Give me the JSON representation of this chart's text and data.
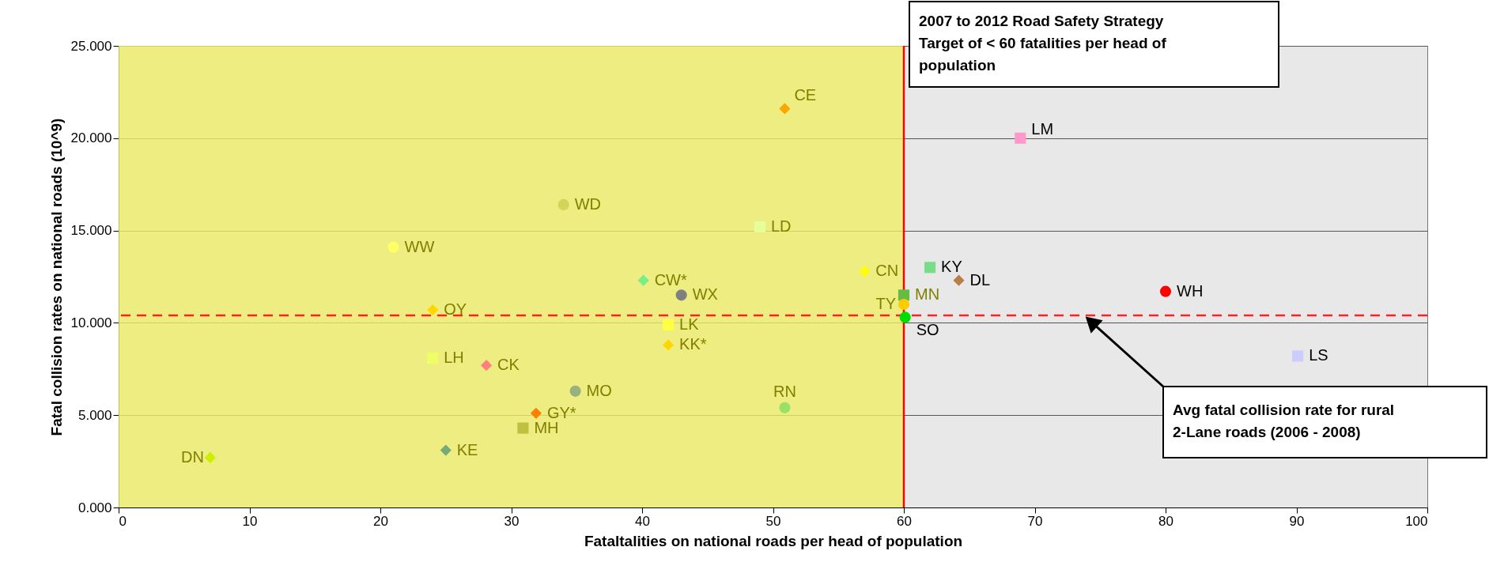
{
  "chart_data": {
    "type": "scatter",
    "xlabel": "Fataltalities on national roads per head of population",
    "ylabel": "Fatal collision rates on national roads (10^9)",
    "xlim": [
      0,
      100
    ],
    "xticks": [
      0,
      10,
      20,
      30,
      40,
      50,
      60,
      70,
      80,
      90,
      100
    ],
    "ylim": [
      0,
      25
    ],
    "yticks": [
      {
        "value": 0,
        "label": "0.000"
      },
      {
        "value": 5,
        "label": "5.000"
      },
      {
        "value": 10,
        "label": "10.000"
      },
      {
        "value": 15,
        "label": "15.000"
      },
      {
        "value": 20,
        "label": "20.000"
      },
      {
        "value": 25,
        "label": "25.000"
      }
    ],
    "grid": "y",
    "legend": false,
    "bands": [
      {
        "axis": "x",
        "from": 0,
        "to": 60,
        "color": "#eeee66"
      }
    ],
    "ref_lines": [
      {
        "axis": "x",
        "value": 60,
        "label": "2007 to 2012 Road Safety Strategy Target of < 60 fatalities per head of population",
        "color": "#ff0000",
        "line_style": "solid"
      },
      {
        "axis": "y",
        "value": 10.4,
        "label": "Avg fatal collision rate for rural 2-Lane roads (2006 - 2008)",
        "color": "#ff2020",
        "line_style": "dashed"
      }
    ],
    "series": [
      {
        "name": "CE",
        "color": "#ffa500",
        "marker": "diamond",
        "x": [
          50.9
        ],
        "values": [
          21.6
        ]
      },
      {
        "name": "LM",
        "color": "#ff99cc",
        "marker": "square",
        "x": [
          68.9
        ],
        "values": [
          20.0
        ]
      },
      {
        "name": "WD",
        "color": "#d4d45a",
        "marker": "circle",
        "x": [
          34.0
        ],
        "values": [
          16.4
        ]
      },
      {
        "name": "LD",
        "color": "#e6ff99",
        "marker": "square",
        "x": [
          49.0
        ],
        "values": [
          15.2
        ]
      },
      {
        "name": "WW",
        "color": "#ffff66",
        "marker": "circle",
        "x": [
          21.0
        ],
        "values": [
          14.1
        ]
      },
      {
        "name": "CN",
        "color": "#ffff00",
        "marker": "diamond",
        "x": [
          57.0
        ],
        "values": [
          12.8
        ]
      },
      {
        "name": "KY",
        "color": "#77dd88",
        "marker": "square",
        "x": [
          62.0
        ],
        "values": [
          13.0
        ]
      },
      {
        "name": "DL",
        "color": "#b87d4b",
        "marker": "diamond",
        "x": [
          64.2
        ],
        "values": [
          12.3
        ]
      },
      {
        "name": "CW*",
        "color": "#77ee88",
        "marker": "diamond",
        "x": [
          40.1
        ],
        "values": [
          12.3
        ]
      },
      {
        "name": "WX",
        "color": "#808080",
        "marker": "circle",
        "x": [
          43.0
        ],
        "values": [
          11.5
        ]
      },
      {
        "name": "WH",
        "color": "#ff0000",
        "marker": "circle",
        "x": [
          80.0
        ],
        "values": [
          11.7
        ]
      },
      {
        "name": "OY",
        "color": "#ffd700",
        "marker": "diamond",
        "x": [
          24.0
        ],
        "values": [
          10.7
        ]
      },
      {
        "name": "MN",
        "color": "#66bb44",
        "marker": "square",
        "x": [
          60.0
        ],
        "values": [
          11.5
        ]
      },
      {
        "name": "TY",
        "color": "#ffcc00",
        "marker": "circle",
        "x": [
          60.0
        ],
        "values": [
          11.0
        ]
      },
      {
        "name": "SO",
        "color": "#00dd00",
        "marker": "circle",
        "x": [
          60.1
        ],
        "values": [
          10.3
        ]
      },
      {
        "name": "LK",
        "color": "#ffff44",
        "marker": "square",
        "x": [
          42.0
        ],
        "values": [
          9.9
        ]
      },
      {
        "name": "KK*",
        "color": "#ffd700",
        "marker": "diamond",
        "x": [
          42.0
        ],
        "values": [
          8.8
        ]
      },
      {
        "name": "LH",
        "color": "#eeff66",
        "marker": "square",
        "x": [
          24.0
        ],
        "values": [
          8.1
        ]
      },
      {
        "name": "CK",
        "color": "#ff7f7f",
        "marker": "diamond",
        "x": [
          28.1
        ],
        "values": [
          7.7
        ]
      },
      {
        "name": "MO",
        "color": "#99b080",
        "marker": "circle",
        "x": [
          34.9
        ],
        "values": [
          6.3
        ]
      },
      {
        "name": "RN",
        "color": "#99e066",
        "marker": "circle",
        "x": [
          50.9
        ],
        "values": [
          5.4
        ]
      },
      {
        "name": "GY*",
        "color": "#ff7f00",
        "marker": "diamond",
        "x": [
          31.9
        ],
        "values": [
          5.1
        ]
      },
      {
        "name": "MH",
        "color": "#c0c040",
        "marker": "square",
        "x": [
          30.9
        ],
        "values": [
          4.3
        ]
      },
      {
        "name": "KE",
        "color": "#77aa77",
        "marker": "diamond",
        "x": [
          25.0
        ],
        "values": [
          3.1
        ]
      },
      {
        "name": "DN",
        "color": "#ccee00",
        "marker": "diamond",
        "x": [
          7.0
        ],
        "values": [
          2.7
        ]
      },
      {
        "name": "LS",
        "color": "#ccccff",
        "marker": "square",
        "x": [
          90.1
        ],
        "values": [
          8.2
        ]
      }
    ]
  }
}
